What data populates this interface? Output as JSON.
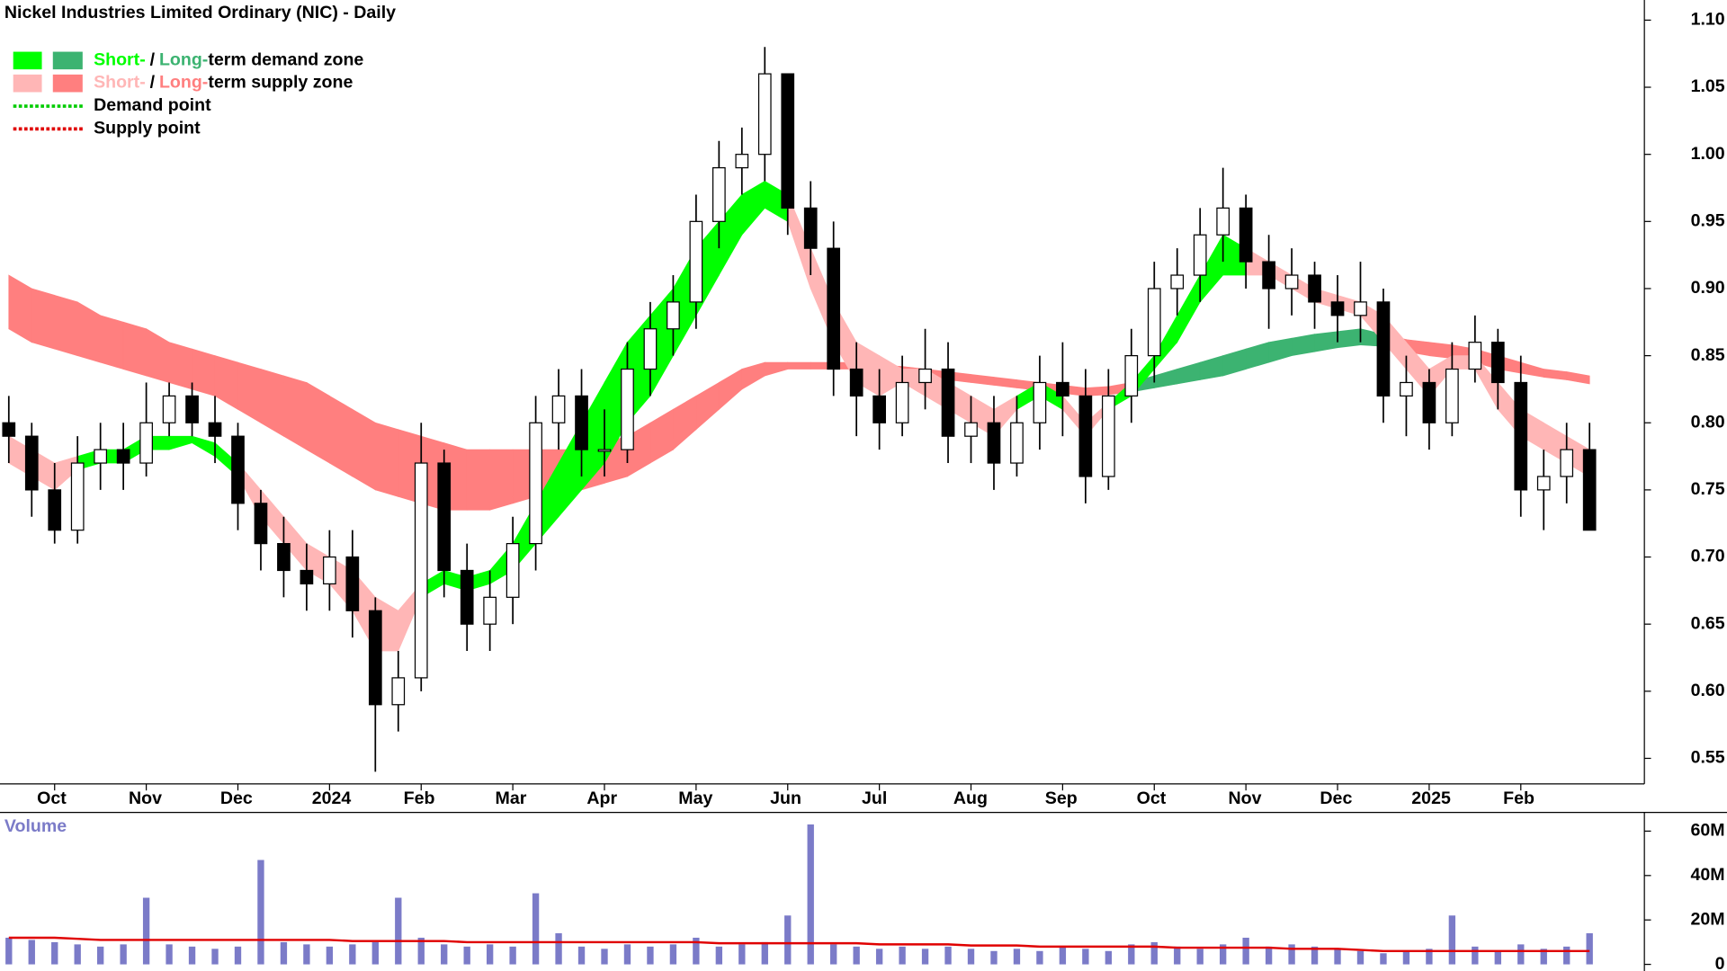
{
  "chart_data": {
    "type": "candlestick",
    "title": "Nickel Industries Limited Ordinary (NIC) - Daily",
    "categories": [
      null,
      null,
      "Oct",
      null,
      null,
      null,
      "Nov",
      null,
      null,
      null,
      "Dec",
      null,
      null,
      null,
      "2024",
      null,
      null,
      null,
      "Feb",
      null,
      null,
      null,
      "Mar",
      null,
      null,
      null,
      "Apr",
      null,
      null,
      null,
      "May",
      null,
      null,
      null,
      "Jun",
      null,
      null,
      null,
      "Jul",
      null,
      null,
      null,
      "Aug",
      null,
      null,
      null,
      "Sep",
      null,
      null,
      null,
      "Oct",
      null,
      null,
      null,
      "Nov",
      null,
      null,
      null,
      "Dec",
      null,
      null,
      null,
      "2025",
      null,
      null,
      null,
      "Feb",
      null,
      null,
      null
    ],
    "open": [
      0.8,
      0.79,
      0.75,
      0.72,
      0.77,
      0.78,
      0.77,
      0.8,
      0.82,
      0.8,
      0.79,
      0.74,
      0.71,
      0.69,
      0.68,
      0.7,
      0.66,
      0.59,
      0.61,
      0.77,
      0.69,
      0.65,
      0.67,
      0.71,
      0.8,
      0.82,
      0.78,
      0.78,
      0.84,
      0.87,
      0.89,
      0.95,
      0.99,
      1.0,
      1.06,
      0.96,
      0.93,
      0.84,
      0.82,
      0.8,
      0.83,
      0.84,
      0.79,
      0.8,
      0.77,
      0.8,
      0.83,
      0.82,
      0.76,
      0.82,
      0.85,
      0.9,
      0.91,
      0.94,
      0.96,
      0.92,
      0.9,
      0.91,
      0.89,
      0.88,
      0.89,
      0.82,
      0.83,
      0.8,
      0.84,
      0.86,
      0.83,
      0.75,
      0.76,
      0.78
    ],
    "high": [
      0.82,
      0.8,
      0.77,
      0.79,
      0.8,
      0.8,
      0.83,
      0.83,
      0.83,
      0.82,
      0.8,
      0.75,
      0.73,
      0.71,
      0.72,
      0.72,
      0.67,
      0.63,
      0.8,
      0.78,
      0.71,
      0.69,
      0.73,
      0.82,
      0.84,
      0.84,
      0.81,
      0.86,
      0.89,
      0.91,
      0.97,
      1.01,
      1.02,
      1.08,
      1.06,
      0.98,
      0.95,
      0.86,
      0.84,
      0.85,
      0.87,
      0.86,
      0.82,
      0.82,
      0.82,
      0.85,
      0.86,
      0.84,
      0.84,
      0.87,
      0.92,
      0.93,
      0.96,
      0.99,
      0.97,
      0.94,
      0.93,
      0.92,
      0.91,
      0.92,
      0.9,
      0.85,
      0.84,
      0.86,
      0.88,
      0.87,
      0.85,
      0.78,
      0.8,
      0.8
    ],
    "low": [
      0.77,
      0.73,
      0.71,
      0.71,
      0.75,
      0.75,
      0.76,
      0.79,
      0.79,
      0.77,
      0.72,
      0.69,
      0.67,
      0.66,
      0.66,
      0.64,
      0.54,
      0.57,
      0.6,
      0.67,
      0.63,
      0.63,
      0.65,
      0.69,
      0.78,
      0.76,
      0.76,
      0.77,
      0.82,
      0.85,
      0.87,
      0.93,
      0.97,
      0.98,
      0.94,
      0.91,
      0.82,
      0.79,
      0.78,
      0.79,
      0.81,
      0.77,
      0.77,
      0.75,
      0.76,
      0.78,
      0.79,
      0.74,
      0.75,
      0.8,
      0.83,
      0.88,
      0.89,
      0.92,
      0.9,
      0.87,
      0.88,
      0.87,
      0.86,
      0.86,
      0.8,
      0.79,
      0.78,
      0.79,
      0.83,
      0.81,
      0.73,
      0.72,
      0.74,
      0.72
    ],
    "close": [
      0.79,
      0.75,
      0.72,
      0.77,
      0.78,
      0.77,
      0.8,
      0.82,
      0.8,
      0.79,
      0.74,
      0.71,
      0.69,
      0.68,
      0.7,
      0.66,
      0.59,
      0.61,
      0.77,
      0.69,
      0.65,
      0.67,
      0.71,
      0.8,
      0.82,
      0.78,
      0.78,
      0.84,
      0.87,
      0.89,
      0.95,
      0.99,
      1.0,
      1.06,
      0.96,
      0.93,
      0.84,
      0.82,
      0.8,
      0.83,
      0.84,
      0.79,
      0.8,
      0.77,
      0.8,
      0.83,
      0.82,
      0.76,
      0.82,
      0.85,
      0.9,
      0.91,
      0.94,
      0.96,
      0.92,
      0.9,
      0.91,
      0.89,
      0.88,
      0.89,
      0.82,
      0.83,
      0.8,
      0.84,
      0.86,
      0.83,
      0.75,
      0.76,
      0.78,
      0.72
    ],
    "up_color": "#ffffff",
    "down_color": "#000000",
    "ylim": [
      0.531,
      1.115
    ],
    "yticks": [
      0.55,
      {
        "value": 0.6,
        "label": "0.60"
      },
      0.65,
      {
        "value": 0.7,
        "label": "0.70"
      },
      0.75,
      {
        "value": 0.8,
        "label": "0.80"
      },
      0.85,
      {
        "value": 0.9,
        "label": "0.90"
      },
      0.95,
      {
        "value": 1.0,
        "label": "1.00"
      },
      1.05,
      {
        "value": 1.1,
        "label": "1.10"
      }
    ],
    "long_zone": {
      "upper": [
        0.91,
        0.9,
        0.895,
        0.89,
        0.88,
        0.875,
        0.87,
        0.86,
        0.855,
        0.85,
        0.845,
        0.84,
        0.835,
        0.83,
        0.82,
        0.81,
        0.8,
        0.795,
        0.79,
        0.785,
        0.78,
        0.78,
        0.78,
        0.78,
        0.78,
        0.78,
        0.785,
        0.79,
        0.8,
        0.81,
        0.82,
        0.83,
        0.84,
        0.845,
        0.845,
        0.845,
        0.845,
        0.845,
        0.843,
        0.842,
        0.84,
        0.838,
        0.836,
        0.834,
        0.832,
        0.83,
        0.828,
        0.826,
        0.827,
        0.83,
        0.835,
        0.84,
        0.845,
        0.85,
        0.855,
        0.86,
        0.863,
        0.866,
        0.868,
        0.87,
        0.866,
        0.862,
        0.86,
        0.858,
        0.855,
        0.85,
        0.845,
        0.84,
        0.838,
        0.835
      ],
      "lower": [
        0.87,
        0.86,
        0.855,
        0.85,
        0.845,
        0.84,
        0.835,
        0.83,
        0.825,
        0.82,
        0.81,
        0.8,
        0.79,
        0.78,
        0.77,
        0.76,
        0.75,
        0.745,
        0.74,
        0.735,
        0.735,
        0.735,
        0.74,
        0.745,
        0.75,
        0.75,
        0.755,
        0.76,
        0.77,
        0.78,
        0.795,
        0.81,
        0.825,
        0.835,
        0.84,
        0.84,
        0.84,
        0.84,
        0.838,
        0.836,
        0.834,
        0.832,
        0.83,
        0.828,
        0.826,
        0.824,
        0.822,
        0.82,
        0.821,
        0.823,
        0.826,
        0.829,
        0.832,
        0.835,
        0.84,
        0.845,
        0.85,
        0.853,
        0.856,
        0.858,
        0.857,
        0.853,
        0.85,
        0.848,
        0.845,
        0.84,
        0.837,
        0.834,
        0.832,
        0.829
      ],
      "states": [
        "supply",
        "supply",
        "supply",
        "supply",
        "supply",
        "supply",
        "supply",
        "supply",
        "supply",
        "supply",
        "supply",
        "supply",
        "supply",
        "supply",
        "supply",
        "supply",
        "supply",
        "supply",
        "supply",
        "supply",
        "supply",
        "supply",
        "supply",
        "supply",
        "supply",
        "supply",
        "supply",
        "supply",
        "supply",
        "supply",
        "supply",
        "supply",
        "supply",
        "supply",
        "supply",
        "supply",
        "supply",
        "supply",
        "supply",
        "supply",
        "supply",
        "supply",
        "supply",
        "supply",
        "supply",
        "supply",
        "supply",
        "supply",
        "supply",
        "demand",
        "demand",
        "demand",
        "demand",
        "demand",
        "demand",
        "demand",
        "demand",
        "demand",
        "demand",
        "demand",
        "supply",
        "supply",
        "supply",
        "supply",
        "supply",
        "supply",
        "supply",
        "supply",
        "supply",
        "supply"
      ],
      "colors": {
        "demand": "#3cb371",
        "supply": "#ff7f7f"
      }
    },
    "short_zone": {
      "upper": [
        0.79,
        0.78,
        0.77,
        0.775,
        0.78,
        0.78,
        0.79,
        0.79,
        0.79,
        0.785,
        0.77,
        0.75,
        0.73,
        0.71,
        0.7,
        0.69,
        0.67,
        0.66,
        0.68,
        0.69,
        0.685,
        0.69,
        0.71,
        0.74,
        0.77,
        0.8,
        0.83,
        0.86,
        0.88,
        0.9,
        0.93,
        0.95,
        0.97,
        0.98,
        0.97,
        0.93,
        0.89,
        0.86,
        0.85,
        0.84,
        0.84,
        0.83,
        0.82,
        0.81,
        0.82,
        0.83,
        0.82,
        0.8,
        0.815,
        0.83,
        0.85,
        0.88,
        0.91,
        0.94,
        0.93,
        0.92,
        0.91,
        0.9,
        0.895,
        0.89,
        0.88,
        0.86,
        0.84,
        0.85,
        0.85,
        0.83,
        0.81,
        0.8,
        0.79,
        0.78
      ],
      "lower": [
        0.77,
        0.76,
        0.75,
        0.765,
        0.77,
        0.77,
        0.78,
        0.78,
        0.785,
        0.775,
        0.76,
        0.73,
        0.71,
        0.69,
        0.68,
        0.66,
        0.63,
        0.63,
        0.67,
        0.68,
        0.675,
        0.68,
        0.69,
        0.71,
        0.73,
        0.75,
        0.77,
        0.8,
        0.82,
        0.85,
        0.88,
        0.91,
        0.94,
        0.96,
        0.95,
        0.9,
        0.86,
        0.83,
        0.82,
        0.83,
        0.82,
        0.81,
        0.8,
        0.79,
        0.81,
        0.82,
        0.81,
        0.79,
        0.81,
        0.82,
        0.84,
        0.86,
        0.89,
        0.91,
        0.91,
        0.91,
        0.9,
        0.89,
        0.885,
        0.88,
        0.86,
        0.84,
        0.82,
        0.84,
        0.84,
        0.81,
        0.79,
        0.78,
        0.77,
        0.76
      ],
      "states": [
        "supply",
        "supply",
        "supply",
        "demand",
        "demand",
        "demand",
        "demand",
        "demand",
        "demand",
        "demand",
        "supply",
        "supply",
        "supply",
        "supply",
        "supply",
        "supply",
        "supply",
        "supply",
        "demand",
        "demand",
        "demand",
        "demand",
        "demand",
        "demand",
        "demand",
        "demand",
        "demand",
        "demand",
        "demand",
        "demand",
        "demand",
        "demand",
        "demand",
        "demand",
        "supply",
        "supply",
        "supply",
        "supply",
        "supply",
        "supply",
        "supply",
        "supply",
        "supply",
        "supply",
        "demand",
        "demand",
        "supply",
        "supply",
        "demand",
        "demand",
        "demand",
        "demand",
        "demand",
        "demand",
        "supply",
        "supply",
        "supply",
        "supply",
        "supply",
        "supply",
        "supply",
        "supply",
        "supply",
        "supply",
        "supply",
        "supply",
        "supply",
        "supply",
        "supply",
        "supply"
      ],
      "colors": {
        "demand": "#00ff00",
        "supply": "#ffb6b6"
      }
    },
    "legend": [
      {
        "short": "Short-",
        "separator": "/",
        "long": "Long-",
        "text": "term demand zone",
        "colors": [
          "#00ff00",
          "#3cb371"
        ]
      },
      {
        "short": "Short-",
        "separator": "/",
        "long": "Long-",
        "text": "term supply zone",
        "colors": [
          "#ffb6b6",
          "#ff7f7f"
        ]
      },
      {
        "text": "Demand point",
        "color": "#00cc00"
      },
      {
        "text": "Supply point",
        "color": "#e00000"
      }
    ],
    "volume": {
      "label": "Volume",
      "color": "#7b7bc8",
      "values": [
        12000000,
        11000000,
        10000000,
        9000000,
        8000000,
        9000000,
        30000000,
        9000000,
        8000000,
        7000000,
        8000000,
        47000000,
        10000000,
        9000000,
        8000000,
        9000000,
        10000000,
        30000000,
        12000000,
        9000000,
        8000000,
        9000000,
        8000000,
        32000000,
        14000000,
        8000000,
        7000000,
        9000000,
        8000000,
        9000000,
        12000000,
        8000000,
        9000000,
        10000000,
        22000000,
        63000000,
        9000000,
        8000000,
        7000000,
        8000000,
        7000000,
        8000000,
        7000000,
        6000000,
        7000000,
        6000000,
        8000000,
        7000000,
        6000000,
        9000000,
        10000000,
        8000000,
        7000000,
        9000000,
        12000000,
        8000000,
        9000000,
        8000000,
        7000000,
        6000000,
        5000000,
        6000000,
        7000000,
        22000000,
        8000000,
        6000000,
        9000000,
        7000000,
        8000000,
        14000000
      ],
      "ma": {
        "color": "#e00000",
        "values": [
          12000000,
          12000000,
          12000000,
          11500000,
          11000000,
          11000000,
          11000000,
          11000000,
          11000000,
          11000000,
          11000000,
          11000000,
          11000000,
          11000000,
          11000000,
          10500000,
          10500000,
          10500000,
          10500000,
          10500000,
          10000000,
          10000000,
          10000000,
          10000000,
          10000000,
          10000000,
          10000000,
          10000000,
          10000000,
          10000000,
          10000000,
          9500000,
          9500000,
          9500000,
          9500000,
          9500000,
          9500000,
          9500000,
          9000000,
          9000000,
          9000000,
          9000000,
          8500000,
          8500000,
          8500000,
          8000000,
          8000000,
          8000000,
          8000000,
          8000000,
          8000000,
          7500000,
          7500000,
          7500000,
          7500000,
          7500000,
          7000000,
          7000000,
          7000000,
          6500000,
          6000000,
          6000000,
          6000000,
          6000000,
          6000000,
          6000000,
          6000000,
          6000000,
          6000000,
          6000000
        ]
      },
      "ylim": [
        -2000000,
        68400000
      ],
      "yticks": [
        0,
        {
          "value": 20000000,
          "label": "20M"
        },
        {
          "value": 40000000,
          "label": "40M"
        },
        {
          "value": 60000000,
          "label": "60M"
        }
      ]
    }
  }
}
